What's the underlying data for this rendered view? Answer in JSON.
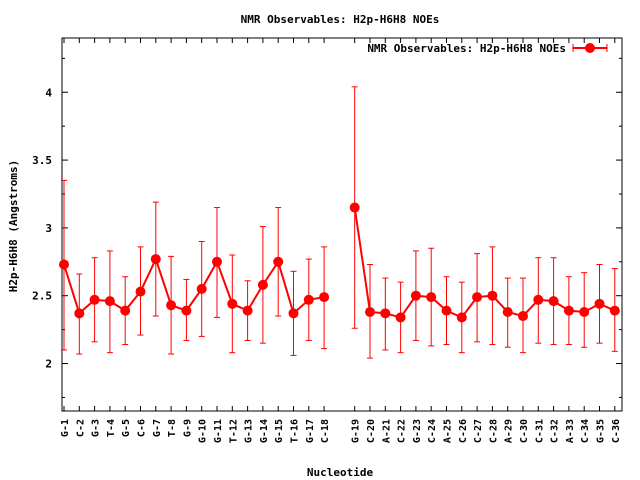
{
  "chart_data": {
    "type": "line",
    "title": "NMR Observables: H2p-H6H8 NOEs",
    "xlabel": "Nucleotide",
    "ylabel": "H2p-H6H8 (Angstroms)",
    "ylim": [
      1.65,
      4.4
    ],
    "yticks": [
      "2",
      "2.5",
      "3",
      "3.5",
      "4"
    ],
    "grid": false,
    "legend_position": "top-right",
    "color": "#ff0000",
    "series": [
      {
        "name": "NMR Observables: H2p-H6H8 NOEs",
        "segments": [
          {
            "points": [
              {
                "label": "G-1",
                "y": 2.73,
                "lo": 2.1,
                "hi": 3.35
              },
              {
                "label": "C-2",
                "y": 2.37,
                "lo": 2.07,
                "hi": 2.66
              },
              {
                "label": "G-3",
                "y": 2.47,
                "lo": 2.16,
                "hi": 2.78
              },
              {
                "label": "T-4",
                "y": 2.46,
                "lo": 2.08,
                "hi": 2.83
              },
              {
                "label": "G-5",
                "y": 2.39,
                "lo": 2.14,
                "hi": 2.64
              },
              {
                "label": "C-6",
                "y": 2.53,
                "lo": 2.21,
                "hi": 2.86
              },
              {
                "label": "G-7",
                "y": 2.77,
                "lo": 2.35,
                "hi": 3.19
              },
              {
                "label": "T-8",
                "y": 2.43,
                "lo": 2.07,
                "hi": 2.79
              },
              {
                "label": "G-9",
                "y": 2.39,
                "lo": 2.17,
                "hi": 2.62
              },
              {
                "label": "G-10",
                "y": 2.55,
                "lo": 2.2,
                "hi": 2.9
              },
              {
                "label": "G-11",
                "y": 2.75,
                "lo": 2.34,
                "hi": 3.15
              },
              {
                "label": "T-12",
                "y": 2.44,
                "lo": 2.08,
                "hi": 2.8
              },
              {
                "label": "G-13",
                "y": 2.39,
                "lo": 2.17,
                "hi": 2.61
              },
              {
                "label": "G-14",
                "y": 2.58,
                "lo": 2.15,
                "hi": 3.01
              },
              {
                "label": "G-15",
                "y": 2.75,
                "lo": 2.35,
                "hi": 3.15
              },
              {
                "label": "T-16",
                "y": 2.37,
                "lo": 2.06,
                "hi": 2.68
              },
              {
                "label": "G-17",
                "y": 2.47,
                "lo": 2.17,
                "hi": 2.77
              },
              {
                "label": "C-18",
                "y": 2.49,
                "lo": 2.11,
                "hi": 2.86
              }
            ]
          },
          {
            "points": [
              {
                "label": "G-19",
                "y": 3.15,
                "lo": 2.26,
                "hi": 4.04
              },
              {
                "label": "C-20",
                "y": 2.38,
                "lo": 2.04,
                "hi": 2.73
              },
              {
                "label": "A-21",
                "y": 2.37,
                "lo": 2.1,
                "hi": 2.63
              },
              {
                "label": "C-22",
                "y": 2.34,
                "lo": 2.08,
                "hi": 2.6
              },
              {
                "label": "G-23",
                "y": 2.5,
                "lo": 2.17,
                "hi": 2.83
              },
              {
                "label": "C-24",
                "y": 2.49,
                "lo": 2.13,
                "hi": 2.85
              },
              {
                "label": "A-25",
                "y": 2.39,
                "lo": 2.14,
                "hi": 2.64
              },
              {
                "label": "C-26",
                "y": 2.34,
                "lo": 2.08,
                "hi": 2.6
              },
              {
                "label": "C-27",
                "y": 2.49,
                "lo": 2.16,
                "hi": 2.81
              },
              {
                "label": "C-28",
                "y": 2.5,
                "lo": 2.14,
                "hi": 2.86
              },
              {
                "label": "A-29",
                "y": 2.38,
                "lo": 2.12,
                "hi": 2.63
              },
              {
                "label": "C-30",
                "y": 2.35,
                "lo": 2.08,
                "hi": 2.63
              },
              {
                "label": "C-31",
                "y": 2.47,
                "lo": 2.15,
                "hi": 2.78
              },
              {
                "label": "C-32",
                "y": 2.46,
                "lo": 2.14,
                "hi": 2.78
              },
              {
                "label": "A-33",
                "y": 2.39,
                "lo": 2.14,
                "hi": 2.64
              },
              {
                "label": "C-34",
                "y": 2.38,
                "lo": 2.12,
                "hi": 2.67
              },
              {
                "label": "G-35",
                "y": 2.44,
                "lo": 2.15,
                "hi": 2.73
              },
              {
                "label": "C-36",
                "y": 2.39,
                "lo": 2.09,
                "hi": 2.7
              }
            ]
          }
        ]
      }
    ]
  }
}
